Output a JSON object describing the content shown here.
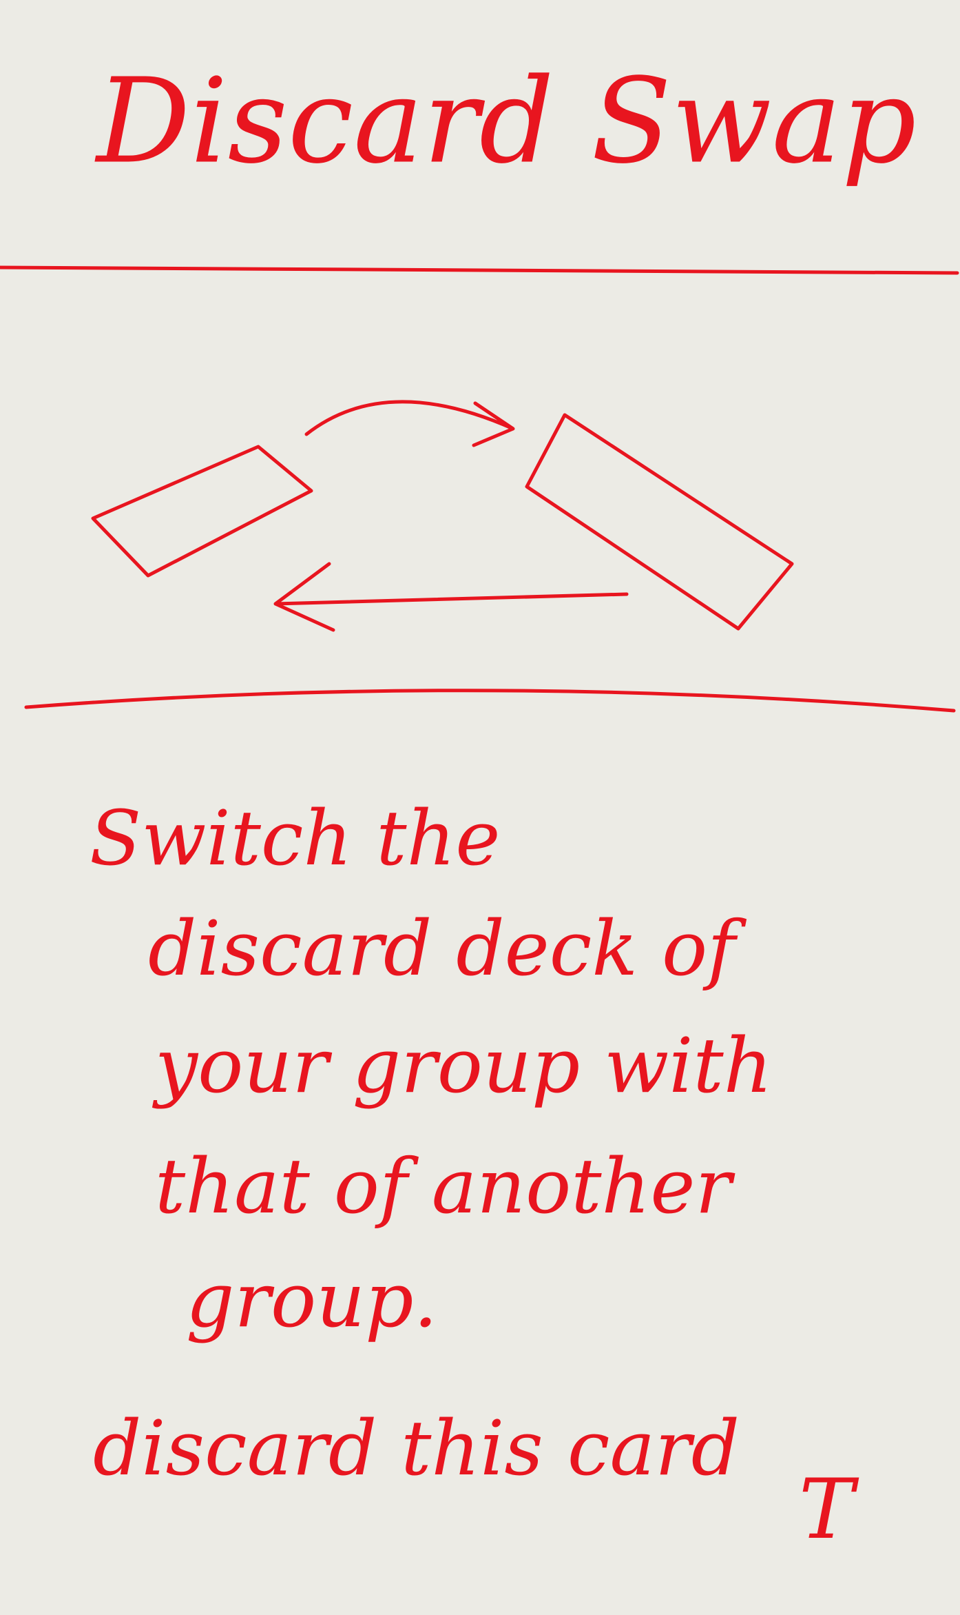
{
  "card": {
    "title": "Discard Swap",
    "body": [
      "Switch the",
      "discard deck of",
      "your group with",
      "that of another",
      "group."
    ],
    "footer": "discard this card",
    "mark": "T"
  }
}
